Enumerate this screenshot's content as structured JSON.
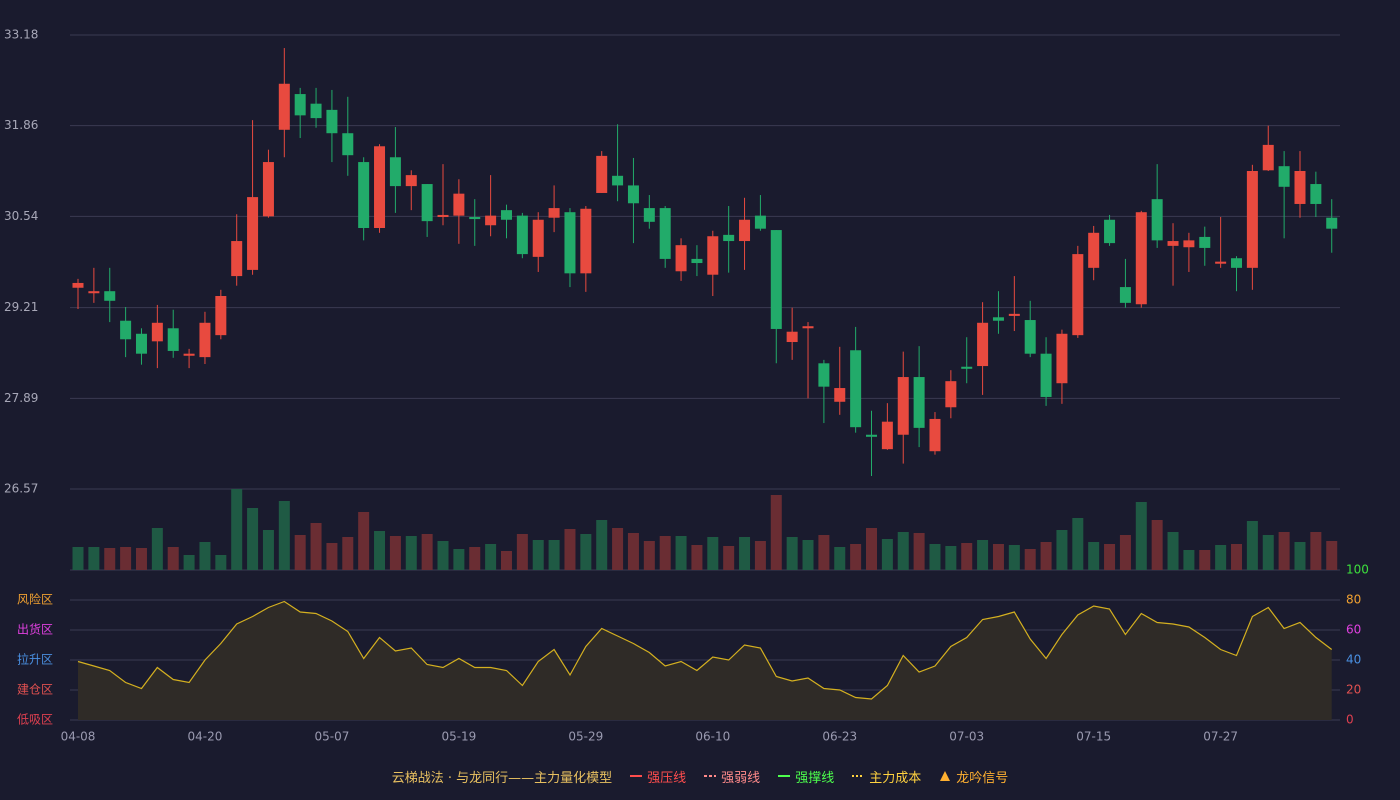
{
  "chart_data": {
    "type": "candlestick",
    "categories": [
      "04-08",
      null,
      null,
      null,
      null,
      null,
      null,
      null,
      "04-20",
      null,
      null,
      null,
      null,
      null,
      null,
      null,
      "05-07",
      null,
      null,
      null,
      null,
      null,
      null,
      null,
      "05-19",
      null,
      null,
      null,
      null,
      null,
      null,
      null,
      "05-29",
      null,
      null,
      null,
      null,
      null,
      null,
      null,
      "06-10",
      null,
      null,
      null,
      null,
      null,
      null,
      null,
      "06-23",
      null,
      null,
      null,
      null,
      null,
      null,
      null,
      "07-03",
      null,
      null,
      null,
      null,
      null,
      null,
      null,
      "07-15",
      null,
      null,
      null,
      null,
      null,
      null,
      null,
      "07-27",
      null,
      null,
      null,
      null,
      null,
      null,
      null
    ],
    "open": [
      29.5,
      29.42,
      29.45,
      29.02,
      28.83,
      28.72,
      28.91,
      28.51,
      28.49,
      28.81,
      29.67,
      29.76,
      30.54,
      31.8,
      32.32,
      32.18,
      32.09,
      31.75,
      31.33,
      30.37,
      31.4,
      30.98,
      31.01,
      30.53,
      30.55,
      30.53,
      30.41,
      30.63,
      30.55,
      29.95,
      30.52,
      30.6,
      29.71,
      30.88,
      31.13,
      30.99,
      30.66,
      30.66,
      29.74,
      29.92,
      29.69,
      30.27,
      30.18,
      30.55,
      30.34,
      28.71,
      28.91,
      28.4,
      27.84,
      28.59,
      27.36,
      27.15,
      27.36,
      28.2,
      27.12,
      27.76,
      28.35,
      28.36,
      29.07,
      29.09,
      29.03,
      28.54,
      28.11,
      28.81,
      29.79,
      30.49,
      29.51,
      29.26,
      30.79,
      30.11,
      30.09,
      30.24,
      29.85,
      29.93,
      29.79,
      31.21,
      31.27,
      30.72,
      31.01,
      30.52
    ],
    "close": [
      29.57,
      29.45,
      29.31,
      28.75,
      28.54,
      28.99,
      28.58,
      28.54,
      28.99,
      29.38,
      30.18,
      30.82,
      31.33,
      32.47,
      32.01,
      31.97,
      31.75,
      31.43,
      30.37,
      31.56,
      30.98,
      31.14,
      30.47,
      30.56,
      30.87,
      30.5,
      30.55,
      30.49,
      29.99,
      30.49,
      30.66,
      29.71,
      30.65,
      31.42,
      30.99,
      30.73,
      30.46,
      29.92,
      30.12,
      29.86,
      30.25,
      30.18,
      30.49,
      30.36,
      28.9,
      28.86,
      28.94,
      28.06,
      28.04,
      27.47,
      27.33,
      27.55,
      28.2,
      27.46,
      27.59,
      28.14,
      28.32,
      28.99,
      29.02,
      29.12,
      28.54,
      27.91,
      28.83,
      29.99,
      30.3,
      30.15,
      29.28,
      30.6,
      30.19,
      30.18,
      30.19,
      30.08,
      29.88,
      29.79,
      31.2,
      31.58,
      30.97,
      31.2,
      30.72,
      30.36
    ],
    "high": [
      29.63,
      29.79,
      29.79,
      29.22,
      28.91,
      29.25,
      29.18,
      28.61,
      29.15,
      29.47,
      30.57,
      31.94,
      31.51,
      32.99,
      32.41,
      32.41,
      32.38,
      32.28,
      31.4,
      31.59,
      31.84,
      31.21,
      31.01,
      31.3,
      31.08,
      30.79,
      31.14,
      30.71,
      30.59,
      30.6,
      30.99,
      30.66,
      30.69,
      31.49,
      31.88,
      31.39,
      30.85,
      30.69,
      30.22,
      30.12,
      30.33,
      30.69,
      30.81,
      30.85,
      30.34,
      29.21,
      29.0,
      28.45,
      28.64,
      28.93,
      27.71,
      27.82,
      28.57,
      28.65,
      27.69,
      28.3,
      28.78,
      29.29,
      29.45,
      29.67,
      29.31,
      28.78,
      28.89,
      30.11,
      30.4,
      30.56,
      29.92,
      30.62,
      31.3,
      30.44,
      30.3,
      30.39,
      30.53,
      29.96,
      31.29,
      31.86,
      31.49,
      31.49,
      31.19,
      30.79
    ],
    "low": [
      29.19,
      29.28,
      29.0,
      28.49,
      28.38,
      28.33,
      28.48,
      28.33,
      28.39,
      28.75,
      29.53,
      29.69,
      30.52,
      31.4,
      31.68,
      31.83,
      31.33,
      31.13,
      30.19,
      30.3,
      30.59,
      30.63,
      30.24,
      30.41,
      30.14,
      30.11,
      30.25,
      30.22,
      29.93,
      29.73,
      30.31,
      29.51,
      29.44,
      30.88,
      30.76,
      30.15,
      30.36,
      29.79,
      29.6,
      29.67,
      29.38,
      29.72,
      29.76,
      30.33,
      28.4,
      28.45,
      27.89,
      27.53,
      27.65,
      27.39,
      26.76,
      27.14,
      26.94,
      27.18,
      27.07,
      27.6,
      28.11,
      27.94,
      28.83,
      28.87,
      28.49,
      27.78,
      27.81,
      28.77,
      29.61,
      30.11,
      29.21,
      29.21,
      30.08,
      29.53,
      29.73,
      29.82,
      29.79,
      29.45,
      29.47,
      31.2,
      30.22,
      30.52,
      30.53,
      30.01
    ],
    "up_color": "#e84a3f",
    "down_color": "#22ab6a",
    "ylim": [
      26.57,
      33.18
    ],
    "yticks": [
      26.57,
      27.89,
      29.21,
      30.54,
      31.86,
      33.18
    ],
    "grid": true,
    "volume": {
      "values": [
        23,
        23,
        22,
        23,
        22,
        42,
        23,
        15,
        28,
        15,
        81,
        62,
        40,
        69,
        35,
        47,
        27,
        33,
        58,
        39,
        34,
        34,
        36,
        29,
        21,
        23,
        26,
        19,
        36,
        30,
        30,
        41,
        36,
        50,
        42,
        37,
        29,
        34,
        34,
        25,
        33,
        24,
        33,
        29,
        75,
        33,
        30,
        35,
        23,
        26,
        42,
        31,
        38,
        37,
        26,
        24,
        27,
        30,
        26,
        25,
        21,
        28,
        40,
        52,
        28,
        26,
        35,
        68,
        50,
        38,
        20,
        20,
        25,
        26,
        49,
        35,
        38,
        28,
        38,
        29
      ],
      "rise_color": "#1f5a44",
      "fall_color": "#6a2d33"
    },
    "indicator": {
      "values": [
        39,
        36,
        33,
        25,
        21,
        35,
        27,
        25,
        40,
        51,
        64,
        69,
        75,
        79,
        72,
        71,
        66,
        59,
        41,
        55,
        46,
        48,
        37,
        35,
        41,
        35,
        35,
        33,
        23,
        39,
        47,
        30,
        49,
        61,
        56,
        51,
        45,
        36,
        39,
        33,
        42,
        40,
        50,
        48,
        29,
        26,
        28,
        21,
        20,
        15,
        14,
        23,
        43,
        32,
        36,
        49,
        55,
        67,
        69,
        72,
        54,
        41,
        57,
        70,
        76,
        74,
        57,
        71,
        65,
        64,
        62,
        55,
        47,
        43,
        69,
        75,
        61,
        65,
        55,
        47
      ],
      "color": "#d4b020",
      "fill": "#2f2b27",
      "ylim": [
        0,
        100
      ],
      "yticks": [
        100,
        80,
        60,
        40,
        20,
        0
      ],
      "ytick_colors": [
        "#3ce03c",
        "#f0a030",
        "#e040e0",
        "#4a90e2",
        "#e05050",
        "#e04050"
      ],
      "zones": [
        {
          "label": "风险区",
          "color": "#f0a030"
        },
        {
          "label": "出货区",
          "color": "#e040e0"
        },
        {
          "label": "拉升区",
          "color": "#4a90e2"
        },
        {
          "label": "建仓区",
          "color": "#e05050"
        },
        {
          "label": "低吸区",
          "color": "#e04050"
        }
      ]
    },
    "legend": {
      "title": "云梯战法 · 与龙同行——主力量化模型",
      "title_color": "#e8c060",
      "items": [
        {
          "name": "强压线",
          "color": "#ff4d4d",
          "style": "solid"
        },
        {
          "name": "强弱线",
          "color": "#ff8a8a",
          "style": "dashed"
        },
        {
          "name": "强撑线",
          "color": "#4dff4d",
          "style": "solid"
        },
        {
          "name": "主力成本",
          "color": "#ffd23f",
          "style": "dotted"
        },
        {
          "name": "龙吟信号",
          "color": "#ffb030",
          "style": "triangle"
        }
      ]
    }
  }
}
